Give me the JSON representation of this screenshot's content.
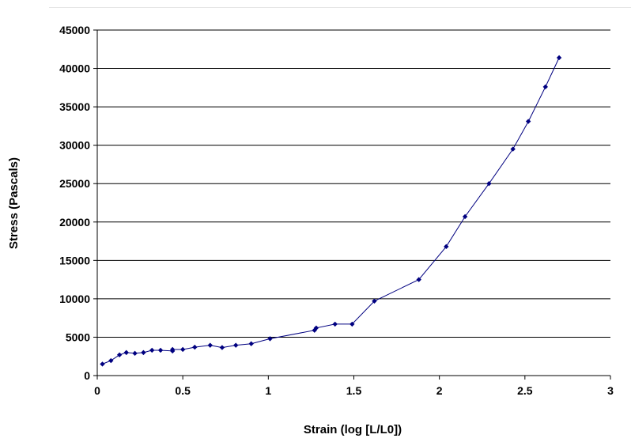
{
  "chart_data": {
    "type": "line",
    "title": "",
    "xlabel": "Strain (log [L/L0])",
    "ylabel": "Stress (Pascals)",
    "xlim": [
      0,
      3
    ],
    "ylim": [
      0,
      45000
    ],
    "xticks": [
      0,
      0.5,
      1,
      1.5,
      2,
      2.5,
      3
    ],
    "xtick_labels": [
      "0",
      "0.5",
      "1",
      "1.5",
      "2",
      "2.5",
      "3"
    ],
    "yticks": [
      0,
      5000,
      10000,
      15000,
      20000,
      25000,
      30000,
      35000,
      40000,
      45000
    ],
    "ytick_labels": [
      "0",
      "5000",
      "10000",
      "15000",
      "20000",
      "25000",
      "30000",
      "35000",
      "40000",
      "45000"
    ],
    "grid": "horizontal",
    "legend": "none",
    "series_color": "#000080",
    "series": [
      {
        "x": [
          0.03,
          0.08,
          0.13,
          0.17,
          0.22,
          0.27,
          0.32,
          0.37,
          0.44,
          0.44,
          0.5,
          0.57,
          0.66,
          0.73,
          0.81,
          0.9,
          1.01,
          1.27,
          1.28,
          1.39,
          1.49,
          1.62,
          1.88,
          2.04,
          2.15,
          2.29,
          2.43,
          2.52,
          2.62,
          2.7
        ],
        "y": [
          1500,
          1950,
          2700,
          3000,
          2900,
          3000,
          3300,
          3300,
          3200,
          3400,
          3400,
          3700,
          3950,
          3650,
          3950,
          4150,
          4800,
          5900,
          6200,
          6700,
          6700,
          9700,
          12500,
          16800,
          20700,
          25000,
          29500,
          33100,
          37600,
          41400
        ]
      }
    ]
  }
}
